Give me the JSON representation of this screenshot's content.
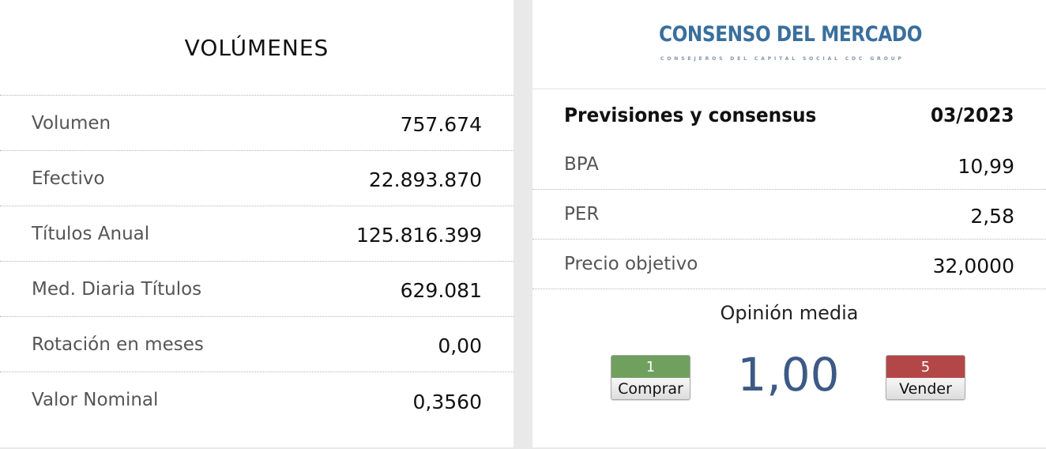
{
  "volumes": {
    "title": "VOLÚMENES",
    "rows": [
      {
        "label": "Volumen",
        "value": "757.674"
      },
      {
        "label": "Efectivo",
        "value": "22.893.870"
      },
      {
        "label": "Títulos Anual",
        "value": "125.816.399"
      },
      {
        "label": "Med. Diaria Títulos",
        "value": "629.081"
      },
      {
        "label": "Rotación en meses",
        "value": "0,00"
      },
      {
        "label": "Valor Nominal",
        "value": "0,3560"
      }
    ]
  },
  "consensus": {
    "logo_text": "CONSENSO DEL MERCADO",
    "logo_subtext": "CONSEJEROS DEL CAPITAL SOCIAL CDC GROUP",
    "header_label": "Previsiones y consensus",
    "header_date": "03/2023",
    "rows": [
      {
        "label": "BPA",
        "value": "10,99"
      },
      {
        "label": "PER",
        "value": "2,58"
      },
      {
        "label": "Precio objetivo",
        "value": "32,0000"
      }
    ],
    "opinion_title": "Opinión media",
    "opinion_score": "1,00",
    "buy": {
      "count": "1",
      "label": "Comprar",
      "color": "#6fa05e"
    },
    "sell": {
      "count": "5",
      "label": "Vender",
      "color": "#b34747"
    }
  }
}
